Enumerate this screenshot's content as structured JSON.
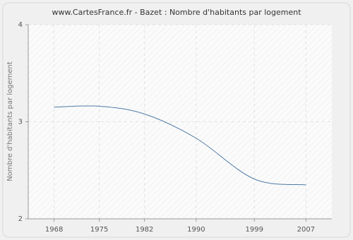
{
  "chart_data": {
    "type": "line",
    "title": "www.CartesFrance.fr - Bazet : Nombre d'habitants par logement",
    "y_label": "Nombre d'habitants par logement",
    "x": [
      1968,
      1975,
      1982,
      1990,
      1999,
      2007
    ],
    "series": [
      {
        "name": "Bazet",
        "color": "#4f7aa6",
        "values": [
          3.15,
          3.16,
          3.08,
          2.83,
          2.41,
          2.35
        ]
      }
    ],
    "xlim": [
      1964,
      2011
    ],
    "xticks": [
      1968,
      1975,
      1982,
      1990,
      1999,
      2007
    ],
    "ylim": [
      2,
      4
    ],
    "yticks": [
      2,
      3,
      4
    ],
    "grid": true
  }
}
